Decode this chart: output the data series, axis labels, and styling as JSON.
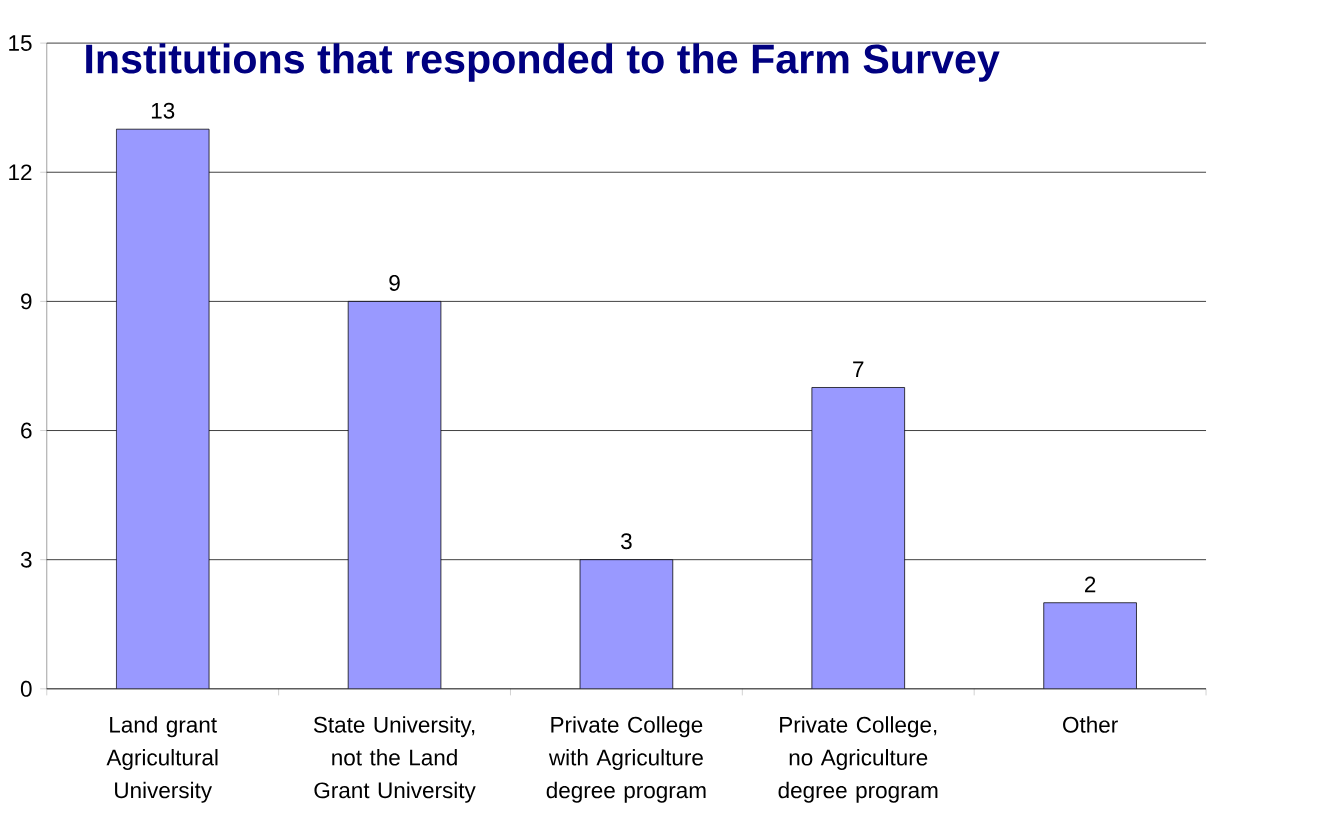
{
  "chart_data": {
    "type": "bar",
    "title": "Institutions that responded to the Farm Survey",
    "categories": [
      "Land grant Agricultural University",
      "State University, not the Land Grant University",
      "Private College with Agriculture degree program",
      "Private College, no Agriculture degree program",
      "Other"
    ],
    "values": [
      13,
      9,
      3,
      7,
      2
    ],
    "color": "#9999ff",
    "ylim": [
      0,
      15
    ],
    "yticks": [
      0,
      3,
      6,
      9,
      12,
      15
    ],
    "grid": "y",
    "data_labels": true
  }
}
